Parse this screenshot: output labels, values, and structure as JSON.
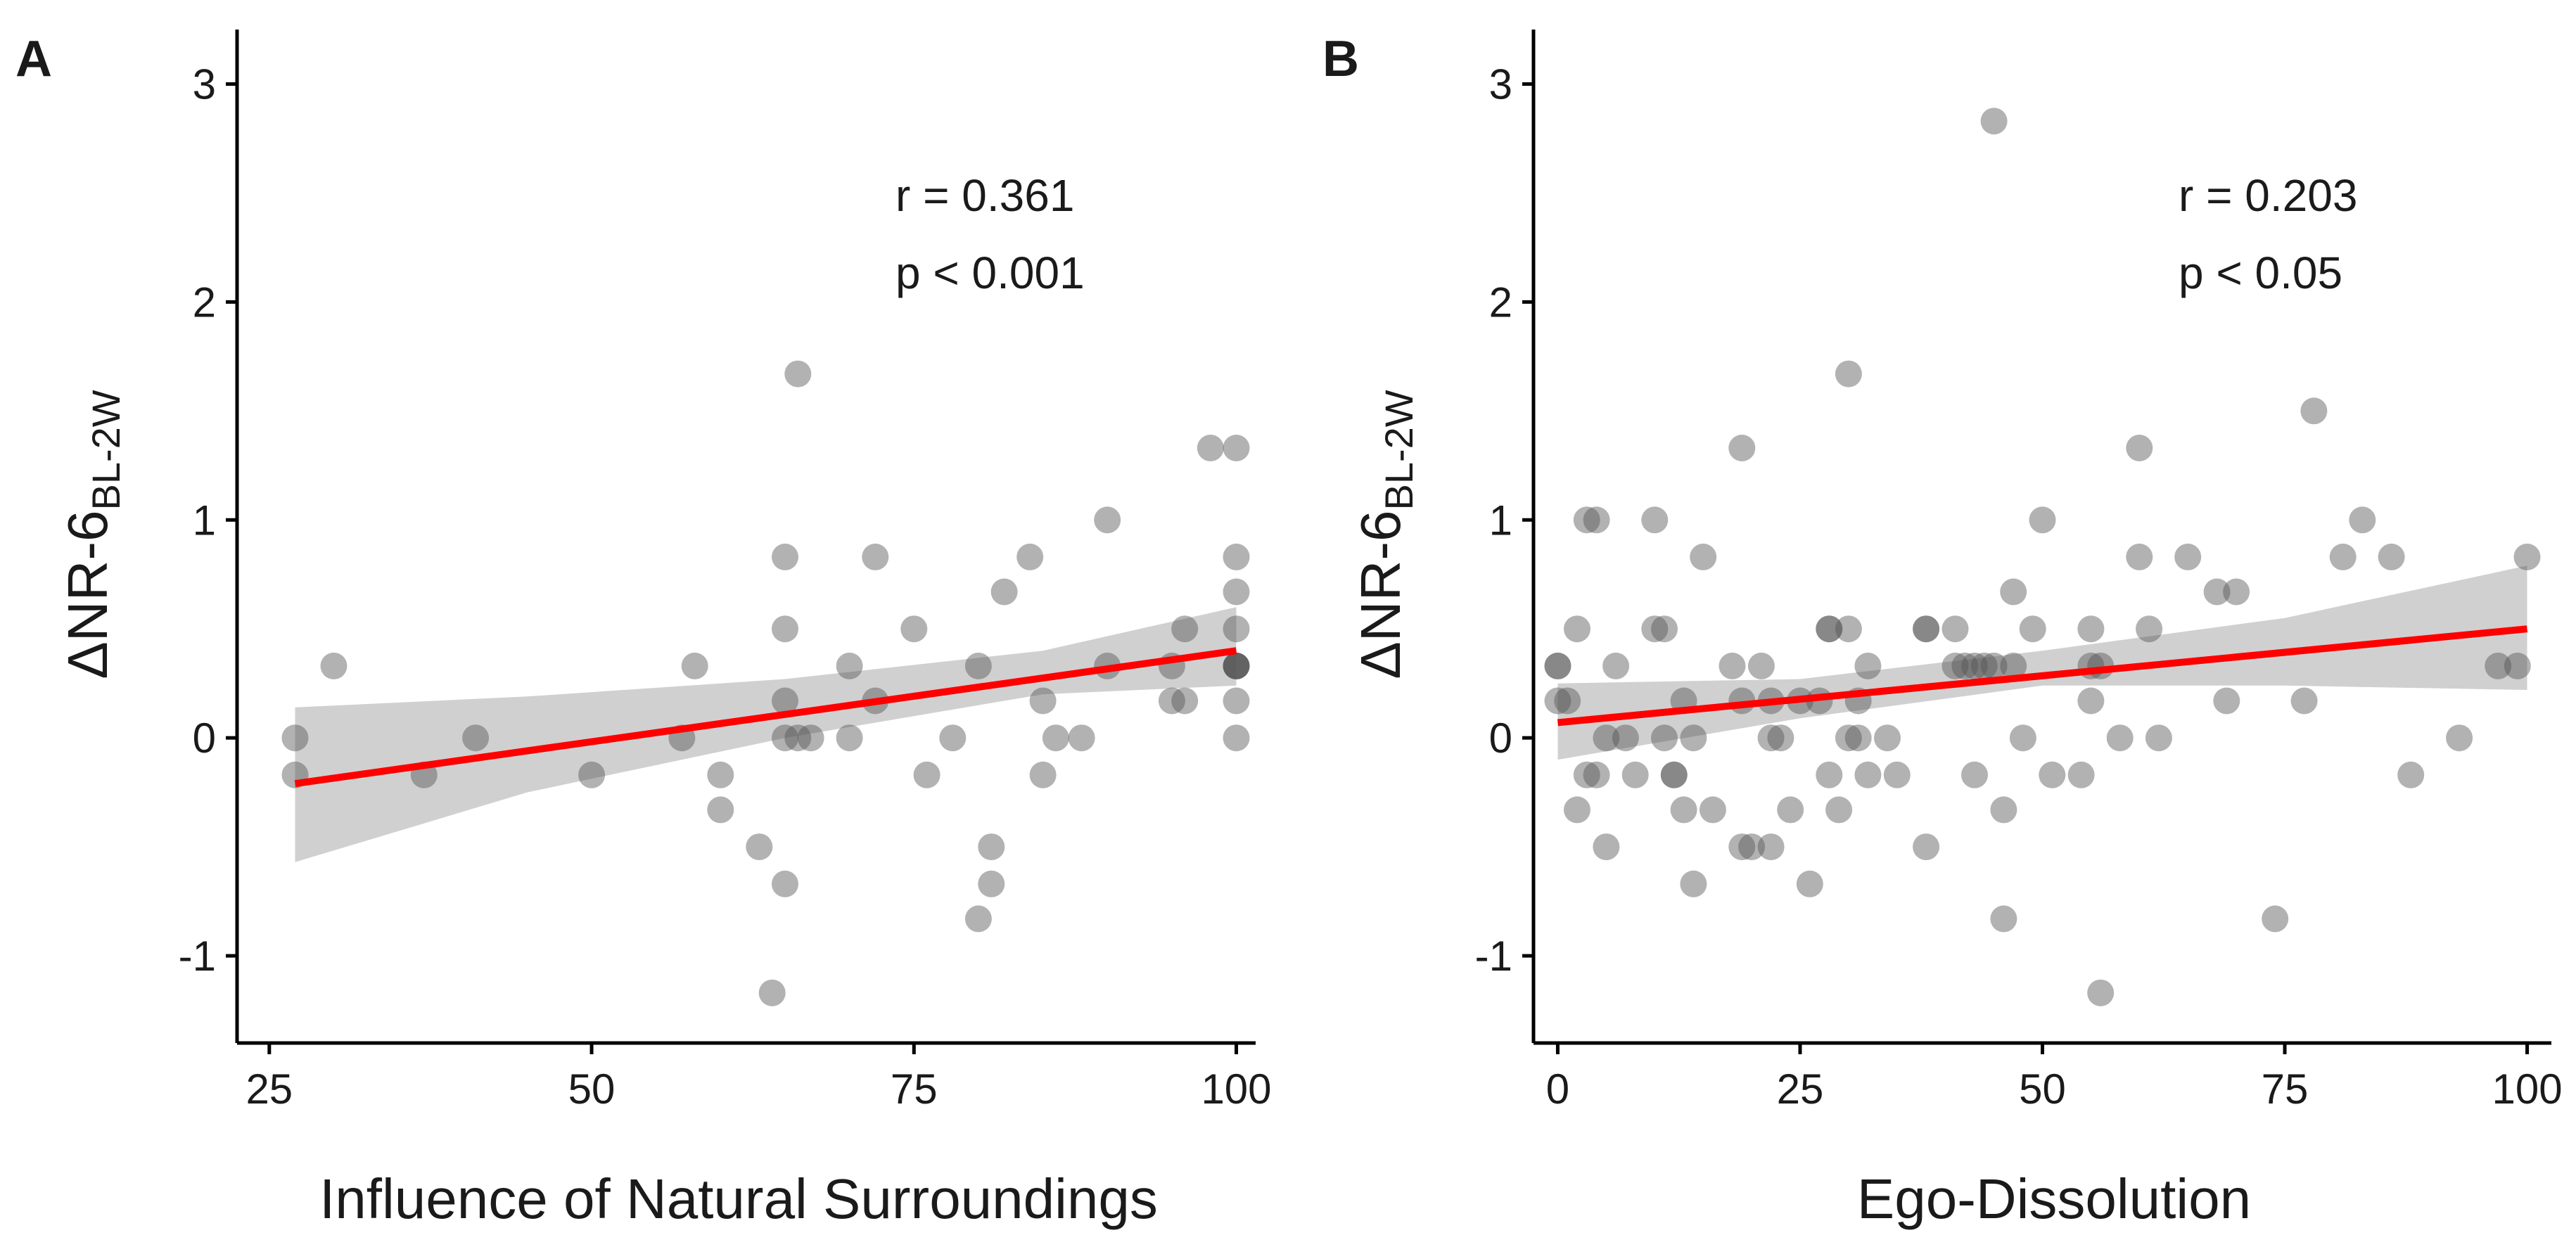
{
  "chart_data": [
    {
      "type": "scatter",
      "panel": "A",
      "xlabel": "Influence of Natural Surroundings",
      "ylabel": "ΔNR-6",
      "ylabel_sub": "BL-2W",
      "xlim": [
        22.5,
        101.5
      ],
      "ylim": [
        -1.4,
        3.25
      ],
      "xticks": [
        25,
        50,
        75,
        100
      ],
      "yticks": [
        -1,
        0,
        1,
        2,
        3
      ],
      "annotation": [
        "r = 0.361",
        "p < 0.001"
      ],
      "fit": {
        "x": [
          27,
          100
        ],
        "y": [
          -0.21,
          0.4
        ],
        "color": "#ff0000"
      },
      "ci": {
        "x": [
          27,
          45,
          65,
          85,
          100
        ],
        "upper": [
          0.14,
          0.19,
          0.27,
          0.4,
          0.6
        ],
        "lower": [
          -0.57,
          -0.25,
          0.0,
          0.2,
          0.24
        ]
      },
      "points": [
        {
          "x": 27,
          "y": 0.0
        },
        {
          "x": 27,
          "y": -0.17
        },
        {
          "x": 30,
          "y": 0.33
        },
        {
          "x": 37,
          "y": -0.17
        },
        {
          "x": 41,
          "y": 0.0
        },
        {
          "x": 50,
          "y": -0.17
        },
        {
          "x": 57,
          "y": 0.0
        },
        {
          "x": 58,
          "y": 0.33
        },
        {
          "x": 60,
          "y": -0.17
        },
        {
          "x": 60,
          "y": -0.33
        },
        {
          "x": 63,
          "y": -0.5
        },
        {
          "x": 64,
          "y": -1.17
        },
        {
          "x": 65,
          "y": 0.83
        },
        {
          "x": 65,
          "y": 0.5
        },
        {
          "x": 65,
          "y": 0.17
        },
        {
          "x": 65,
          "y": 0.0
        },
        {
          "x": 65,
          "y": -0.67
        },
        {
          "x": 66,
          "y": 1.67
        },
        {
          "x": 66,
          "y": 0.0
        },
        {
          "x": 67,
          "y": 0.0
        },
        {
          "x": 70,
          "y": 0.33
        },
        {
          "x": 70,
          "y": 0.0
        },
        {
          "x": 72,
          "y": 0.83
        },
        {
          "x": 72,
          "y": 0.17
        },
        {
          "x": 75,
          "y": 0.5
        },
        {
          "x": 76,
          "y": -0.17
        },
        {
          "x": 78,
          "y": 0.0
        },
        {
          "x": 80,
          "y": 0.33
        },
        {
          "x": 80,
          "y": -0.83
        },
        {
          "x": 81,
          "y": -0.5
        },
        {
          "x": 81,
          "y": -0.67
        },
        {
          "x": 82,
          "y": 0.67
        },
        {
          "x": 84,
          "y": 0.83
        },
        {
          "x": 85,
          "y": 0.17
        },
        {
          "x": 85,
          "y": -0.17
        },
        {
          "x": 86,
          "y": 0.0
        },
        {
          "x": 88,
          "y": 0.0
        },
        {
          "x": 90,
          "y": 1.0
        },
        {
          "x": 90,
          "y": 0.33
        },
        {
          "x": 95,
          "y": 0.33
        },
        {
          "x": 95,
          "y": 0.17
        },
        {
          "x": 96,
          "y": 0.5
        },
        {
          "x": 96,
          "y": 0.17
        },
        {
          "x": 98,
          "y": 1.33
        },
        {
          "x": 100,
          "y": 1.33
        },
        {
          "x": 100,
          "y": 0.83
        },
        {
          "x": 100,
          "y": 0.67
        },
        {
          "x": 100,
          "y": 0.5
        },
        {
          "x": 100,
          "y": 0.33
        },
        {
          "x": 100,
          "y": 0.33
        },
        {
          "x": 100,
          "y": 0.33
        },
        {
          "x": 100,
          "y": 0.33
        },
        {
          "x": 100,
          "y": 0.17
        },
        {
          "x": 100,
          "y": 0.0
        }
      ]
    },
    {
      "type": "scatter",
      "panel": "B",
      "xlabel": "Ego-Dissolution",
      "ylabel": "ΔNR-6",
      "ylabel_sub": "BL-2W",
      "xlim": [
        -2.5,
        102.5
      ],
      "ylim": [
        -1.4,
        3.25
      ],
      "xticks": [
        0,
        25,
        50,
        75,
        100
      ],
      "yticks": [
        -1,
        0,
        1,
        2,
        3
      ],
      "annotation": [
        "r = 0.203",
        "p < 0.05"
      ],
      "fit": {
        "x": [
          0,
          100
        ],
        "y": [
          0.07,
          0.5
        ],
        "color": "#ff0000"
      },
      "ci": {
        "x": [
          0,
          25,
          50,
          75,
          100
        ],
        "upper": [
          0.25,
          0.27,
          0.4,
          0.55,
          0.79
        ],
        "lower": [
          -0.1,
          0.09,
          0.24,
          0.24,
          0.22
        ]
      },
      "points": [
        {
          "x": 0,
          "y": 0.33
        },
        {
          "x": 0,
          "y": 0.33
        },
        {
          "x": 0,
          "y": 0.17
        },
        {
          "x": 1,
          "y": 0.17
        },
        {
          "x": 2,
          "y": 0.5
        },
        {
          "x": 2,
          "y": -0.33
        },
        {
          "x": 3,
          "y": 1.0
        },
        {
          "x": 3,
          "y": -0.17
        },
        {
          "x": 4,
          "y": 1.0
        },
        {
          "x": 4,
          "y": -0.17
        },
        {
          "x": 5,
          "y": -0.5
        },
        {
          "x": 5,
          "y": 0.0
        },
        {
          "x": 6,
          "y": 0.33
        },
        {
          "x": 7,
          "y": 0.0
        },
        {
          "x": 8,
          "y": -0.17
        },
        {
          "x": 10,
          "y": 0.5
        },
        {
          "x": 10,
          "y": 1.0
        },
        {
          "x": 11,
          "y": 0.5
        },
        {
          "x": 11,
          "y": 0.0
        },
        {
          "x": 12,
          "y": -0.17
        },
        {
          "x": 12,
          "y": -0.17
        },
        {
          "x": 13,
          "y": 0.17
        },
        {
          "x": 13,
          "y": -0.33
        },
        {
          "x": 14,
          "y": -0.67
        },
        {
          "x": 14,
          "y": 0.0
        },
        {
          "x": 15,
          "y": 0.83
        },
        {
          "x": 16,
          "y": -0.33
        },
        {
          "x": 18,
          "y": 0.33
        },
        {
          "x": 19,
          "y": 1.33
        },
        {
          "x": 19,
          "y": 0.17
        },
        {
          "x": 19,
          "y": -0.5
        },
        {
          "x": 20,
          "y": -0.5
        },
        {
          "x": 21,
          "y": 0.33
        },
        {
          "x": 22,
          "y": 0.17
        },
        {
          "x": 22,
          "y": 0.0
        },
        {
          "x": 22,
          "y": -0.5
        },
        {
          "x": 23,
          "y": 0.0
        },
        {
          "x": 24,
          "y": -0.33
        },
        {
          "x": 25,
          "y": 0.17
        },
        {
          "x": 26,
          "y": -0.67
        },
        {
          "x": 27,
          "y": 0.17
        },
        {
          "x": 28,
          "y": 0.5
        },
        {
          "x": 28,
          "y": 0.5
        },
        {
          "x": 28,
          "y": -0.17
        },
        {
          "x": 29,
          "y": -0.33
        },
        {
          "x": 30,
          "y": 1.67
        },
        {
          "x": 30,
          "y": 0.5
        },
        {
          "x": 30,
          "y": 0.0
        },
        {
          "x": 31,
          "y": 0.17
        },
        {
          "x": 31,
          "y": 0.0
        },
        {
          "x": 32,
          "y": 0.33
        },
        {
          "x": 32,
          "y": -0.17
        },
        {
          "x": 34,
          "y": 0.0
        },
        {
          "x": 35,
          "y": -0.17
        },
        {
          "x": 38,
          "y": 0.5
        },
        {
          "x": 38,
          "y": 0.5
        },
        {
          "x": 38,
          "y": -0.5
        },
        {
          "x": 41,
          "y": 0.5
        },
        {
          "x": 41,
          "y": 0.33
        },
        {
          "x": 42,
          "y": 0.33
        },
        {
          "x": 43,
          "y": 0.33
        },
        {
          "x": 43,
          "y": -0.17
        },
        {
          "x": 44,
          "y": 0.33
        },
        {
          "x": 45,
          "y": 2.83
        },
        {
          "x": 45,
          "y": 0.33
        },
        {
          "x": 46,
          "y": -0.33
        },
        {
          "x": 46,
          "y": -0.83
        },
        {
          "x": 47,
          "y": 0.67
        },
        {
          "x": 47,
          "y": 0.33
        },
        {
          "x": 48,
          "y": 0.0
        },
        {
          "x": 49,
          "y": 0.5
        },
        {
          "x": 50,
          "y": 1.0
        },
        {
          "x": 51,
          "y": -0.17
        },
        {
          "x": 54,
          "y": -0.17
        },
        {
          "x": 55,
          "y": 0.33
        },
        {
          "x": 55,
          "y": 0.17
        },
        {
          "x": 55,
          "y": 0.5
        },
        {
          "x": 56,
          "y": -1.17
        },
        {
          "x": 56,
          "y": 0.33
        },
        {
          "x": 58,
          "y": 0.0
        },
        {
          "x": 60,
          "y": 1.33
        },
        {
          "x": 60,
          "y": 0.83
        },
        {
          "x": 61,
          "y": 0.5
        },
        {
          "x": 62,
          "y": 0.0
        },
        {
          "x": 65,
          "y": 0.83
        },
        {
          "x": 68,
          "y": 0.67
        },
        {
          "x": 69,
          "y": 0.17
        },
        {
          "x": 70,
          "y": 0.67
        },
        {
          "x": 74,
          "y": -0.83
        },
        {
          "x": 77,
          "y": 0.17
        },
        {
          "x": 78,
          "y": 1.5
        },
        {
          "x": 81,
          "y": 0.83
        },
        {
          "x": 83,
          "y": 1.0
        },
        {
          "x": 86,
          "y": 0.83
        },
        {
          "x": 88,
          "y": -0.17
        },
        {
          "x": 93,
          "y": 0.0
        },
        {
          "x": 97,
          "y": 0.33
        },
        {
          "x": 99,
          "y": 0.33
        },
        {
          "x": 100,
          "y": 0.83
        }
      ]
    }
  ]
}
